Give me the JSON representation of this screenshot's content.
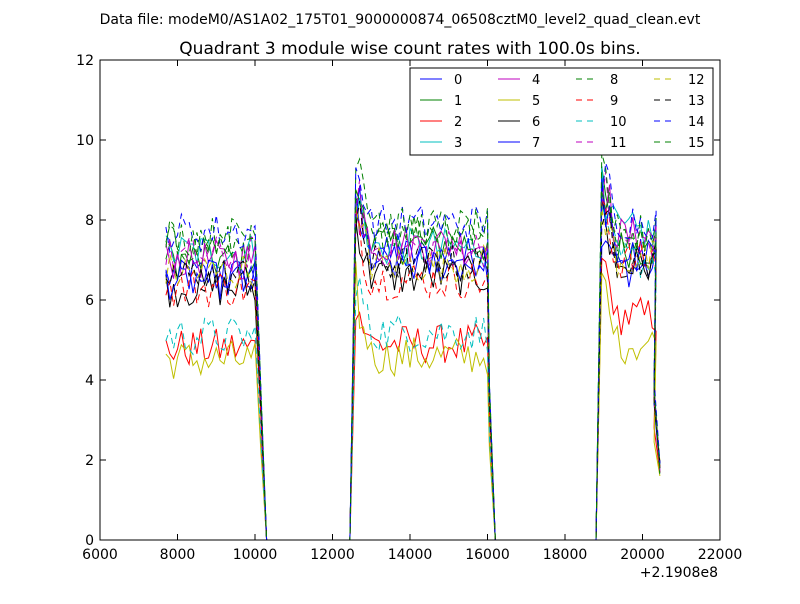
{
  "figure": {
    "suptitle": "Data file: modeM0/AS1A02_175T01_9000000874_06508cztM0_level2_quad_clean.evt"
  },
  "chart_data": {
    "type": "line",
    "title": "Quadrant 3 module wise count rates with 100.0s bins.",
    "xlabel": "",
    "ylabel": "",
    "x_offset_label": "+2.1908e8",
    "xlim": [
      6000,
      22000
    ],
    "ylim": [
      0,
      12
    ],
    "x_ticks": [
      6000,
      8000,
      10000,
      12000,
      14000,
      16000,
      18000,
      20000,
      22000
    ],
    "y_ticks": [
      0,
      2,
      4,
      6,
      8,
      10,
      12
    ],
    "grid": false,
    "legend_position": "top-right",
    "legend_columns": 4,
    "segments": [
      {
        "start": 7700,
        "end": 10000,
        "drop": 10300
      },
      {
        "start": 12600,
        "end": 16000,
        "drop": 16200
      },
      {
        "start": 18950,
        "end": 20400,
        "drop": 20450
      }
    ],
    "series": [
      {
        "name": "0",
        "color": "#0000ff",
        "dash": "solid",
        "levels": [
          6.6,
          7.1,
          6.8
        ]
      },
      {
        "name": "1",
        "color": "#008000",
        "dash": "solid",
        "levels": [
          7.0,
          7.4,
          7.3
        ]
      },
      {
        "name": "2",
        "color": "#ff0000",
        "dash": "solid",
        "levels": [
          4.8,
          4.9,
          5.6
        ]
      },
      {
        "name": "3",
        "color": "#00bfbf",
        "dash": "solid",
        "levels": [
          7.2,
          7.3,
          7.7
        ]
      },
      {
        "name": "4",
        "color": "#bf00bf",
        "dash": "solid",
        "levels": [
          7.0,
          7.4,
          7.6
        ]
      },
      {
        "name": "5",
        "color": "#bfbf00",
        "dash": "solid",
        "levels": [
          4.5,
          4.6,
          4.9
        ]
      },
      {
        "name": "6",
        "color": "#000000",
        "dash": "solid",
        "levels": [
          6.3,
          6.6,
          6.9
        ]
      },
      {
        "name": "7",
        "color": "#0000ff",
        "dash": "solid",
        "levels": [
          6.5,
          6.9,
          7.1
        ]
      },
      {
        "name": "8",
        "color": "#008000",
        "dash": "dashed",
        "levels": [
          7.4,
          7.8,
          7.7
        ]
      },
      {
        "name": "9",
        "color": "#ff0000",
        "dash": "dashed",
        "levels": [
          6.3,
          6.5,
          7.0
        ]
      },
      {
        "name": "10",
        "color": "#00bfbf",
        "dash": "dashed",
        "levels": [
          5.1,
          5.2,
          7.0
        ]
      },
      {
        "name": "11",
        "color": "#bf00bf",
        "dash": "dashed",
        "levels": [
          7.1,
          7.3,
          7.5
        ]
      },
      {
        "name": "12",
        "color": "#bfbf00",
        "dash": "dashed",
        "levels": [
          6.7,
          6.9,
          7.0
        ]
      },
      {
        "name": "13",
        "color": "#000000",
        "dash": "dashed",
        "levels": [
          6.6,
          6.9,
          7.0
        ]
      },
      {
        "name": "14",
        "color": "#0000ff",
        "dash": "dashed",
        "levels": [
          7.7,
          7.9,
          8.0
        ]
      },
      {
        "name": "15",
        "color": "#008000",
        "dash": "dashed",
        "levels": [
          7.6,
          7.8,
          7.6
        ]
      }
    ]
  }
}
